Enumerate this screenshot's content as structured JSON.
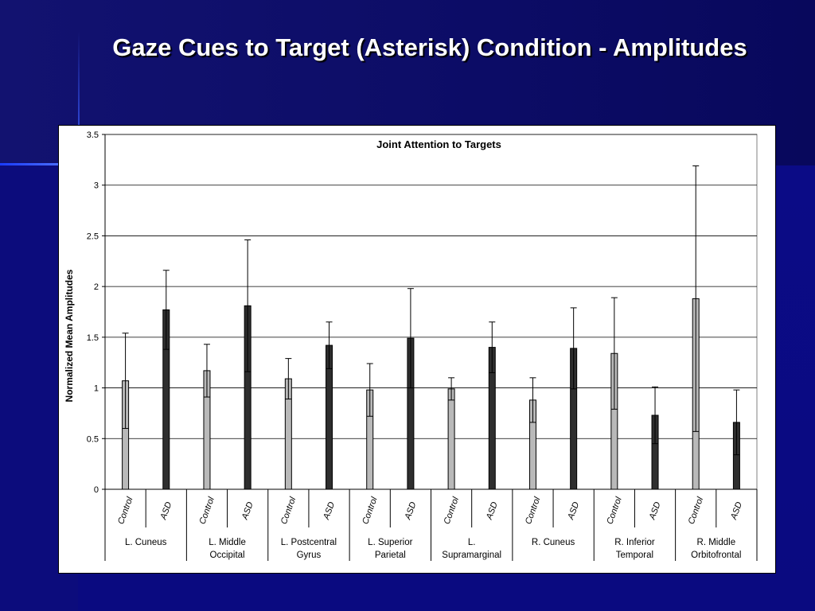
{
  "slide": {
    "title": "Gaze Cues to Target (Asterisk) Condition - Amplitudes"
  },
  "chart_data": {
    "type": "bar",
    "title": "Joint Attention to Targets",
    "ylabel": "Normalized Mean Amplitudes",
    "xlabel": "",
    "ylim": [
      0,
      3.5
    ],
    "yticks": [
      "0",
      "0.5",
      "1",
      "1.5",
      "2",
      "2.5",
      "3",
      "3.5"
    ],
    "ytick_values": [
      0,
      0.5,
      1,
      1.5,
      2,
      2.5,
      3,
      3.5
    ],
    "grid": true,
    "legend": "none",
    "sub_categories": [
      "Control",
      "ASD"
    ],
    "categories": [
      {
        "name_lines": [
          "L. Cuneus"
        ],
        "values": [
          1.07,
          1.77
        ],
        "error": [
          0.47,
          0.39
        ]
      },
      {
        "name_lines": [
          "L. Middle",
          "Occipital"
        ],
        "values": [
          1.17,
          1.81
        ],
        "error": [
          0.26,
          0.65
        ]
      },
      {
        "name_lines": [
          "L. Postcentral",
          "Gyrus"
        ],
        "values": [
          1.09,
          1.42
        ],
        "error": [
          0.2,
          0.23
        ]
      },
      {
        "name_lines": [
          "L. Superior",
          "Parietal"
        ],
        "values": [
          0.98,
          1.49
        ],
        "error": [
          0.26,
          0.49
        ]
      },
      {
        "name_lines": [
          "L.",
          "Supramarginal"
        ],
        "values": [
          0.99,
          1.4
        ],
        "error": [
          0.11,
          0.25
        ]
      },
      {
        "name_lines": [
          "R. Cuneus"
        ],
        "values": [
          0.88,
          1.39
        ],
        "error": [
          0.22,
          0.4
        ]
      },
      {
        "name_lines": [
          "R. Inferior",
          "Temporal"
        ],
        "values": [
          1.34,
          0.73
        ],
        "error": [
          0.55,
          0.28
        ]
      },
      {
        "name_lines": [
          "R. Middle",
          "Orbitofrontal"
        ],
        "values": [
          1.88,
          0.66
        ],
        "error": [
          1.31,
          0.32
        ]
      }
    ],
    "colors": {
      "Control": "#b9b9b9",
      "ASD": "#2e2e2e"
    }
  }
}
